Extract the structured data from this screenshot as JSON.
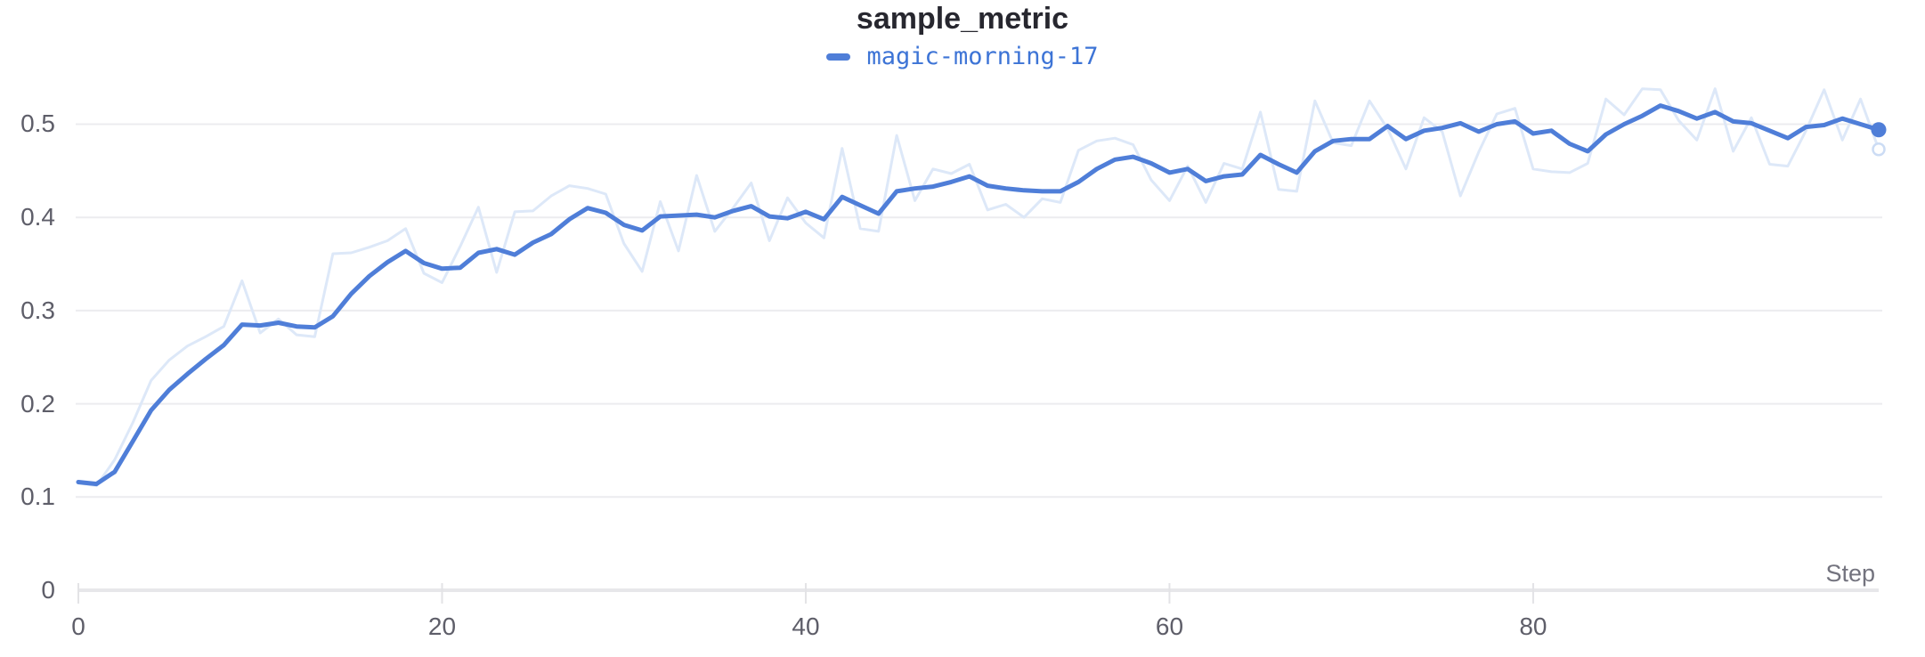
{
  "header": {
    "title": "sample_metric"
  },
  "legend": {
    "items": [
      {
        "label": "magic-morning-17",
        "color": "#4f7ed8"
      }
    ]
  },
  "colors": {
    "background": "#ffffff",
    "grid": "#ececef",
    "axis": "#e7e7ea",
    "axis_tick": "#e3e3e6",
    "tick_label": "#5e5e69",
    "axis_label": "#73737e",
    "title": "#27272f",
    "legend_text": "#3d74d6",
    "accent_line": "#4f7ed8",
    "raw_line": "#dde8f8",
    "raw_marker_stroke": "#ccdcf4"
  },
  "chart_data": {
    "type": "line",
    "title": "sample_metric",
    "xlabel": "Step",
    "ylabel": "",
    "xlim": [
      0,
      99
    ],
    "ylim": [
      0,
      0.5616
    ],
    "grid": "horizontal-only",
    "legend_position": "top-center",
    "x_ticks": [
      {
        "value": 0,
        "label": "0"
      },
      {
        "value": 20,
        "label": "20"
      },
      {
        "value": 40,
        "label": "40"
      },
      {
        "value": 60,
        "label": "60"
      },
      {
        "value": 80,
        "label": "80"
      }
    ],
    "y_ticks": [
      {
        "value": 0,
        "label": "0"
      },
      {
        "value": 0.1,
        "label": "0.1"
      },
      {
        "value": 0.2,
        "label": "0.2"
      },
      {
        "value": 0.3,
        "label": "0.3"
      },
      {
        "value": 0.4,
        "label": "0.4"
      },
      {
        "value": 0.5,
        "label": "0.5"
      }
    ],
    "x": [
      0,
      1,
      2,
      3,
      4,
      5,
      6,
      7,
      8,
      9,
      10,
      11,
      12,
      13,
      14,
      15,
      16,
      17,
      18,
      19,
      20,
      21,
      22,
      23,
      24,
      25,
      26,
      27,
      28,
      29,
      30,
      31,
      32,
      33,
      34,
      35,
      36,
      37,
      38,
      39,
      40,
      41,
      42,
      43,
      44,
      45,
      46,
      47,
      48,
      49,
      50,
      51,
      52,
      53,
      54,
      55,
      56,
      57,
      58,
      59,
      60,
      61,
      62,
      63,
      64,
      65,
      66,
      67,
      68,
      69,
      70,
      71,
      72,
      73,
      74,
      75,
      76,
      77,
      78,
      79,
      80,
      81,
      82,
      83,
      84,
      85,
      86,
      87,
      88,
      89,
      90,
      91,
      92,
      93,
      94,
      95,
      96,
      97,
      98,
      99
    ],
    "series": [
      {
        "name": "magic-morning-17",
        "role": "raw",
        "color": "#dde8f8",
        "stroke_width": 3,
        "values": [
          0.115,
          0.112,
          0.14,
          0.18,
          0.225,
          0.247,
          0.262,
          0.272,
          0.283,
          0.332,
          0.276,
          0.291,
          0.274,
          0.272,
          0.361,
          0.362,
          0.368,
          0.375,
          0.388,
          0.34,
          0.33,
          0.369,
          0.411,
          0.341,
          0.406,
          0.407,
          0.423,
          0.434,
          0.431,
          0.425,
          0.372,
          0.342,
          0.417,
          0.364,
          0.445,
          0.385,
          0.41,
          0.437,
          0.375,
          0.421,
          0.394,
          0.378,
          0.474,
          0.388,
          0.385,
          0.488,
          0.418,
          0.452,
          0.447,
          0.457,
          0.408,
          0.414,
          0.4,
          0.42,
          0.416,
          0.472,
          0.482,
          0.485,
          0.478,
          0.44,
          0.418,
          0.455,
          0.416,
          0.458,
          0.452,
          0.513,
          0.43,
          0.428,
          0.525,
          0.48,
          0.477,
          0.525,
          0.495,
          0.452,
          0.507,
          0.492,
          0.423,
          0.47,
          0.511,
          0.517,
          0.452,
          0.449,
          0.448,
          0.458,
          0.527,
          0.51,
          0.538,
          0.537,
          0.504,
          0.483,
          0.538,
          0.471,
          0.507,
          0.457,
          0.455,
          0.493,
          0.537,
          0.483,
          0.527,
          0.473
        ],
        "end_marker": {
          "shape": "open-circle",
          "x": 99,
          "value": 0.473
        }
      },
      {
        "name": "magic-morning-17",
        "role": "smoothed",
        "color": "#4f7ed8",
        "stroke_width": 5,
        "values": [
          0.116,
          0.114,
          0.127,
          0.16,
          0.193,
          0.215,
          0.232,
          0.248,
          0.263,
          0.285,
          0.284,
          0.287,
          0.283,
          0.282,
          0.294,
          0.318,
          0.337,
          0.352,
          0.364,
          0.351,
          0.345,
          0.346,
          0.362,
          0.366,
          0.36,
          0.373,
          0.382,
          0.398,
          0.41,
          0.405,
          0.392,
          0.386,
          0.401,
          0.402,
          0.403,
          0.4,
          0.407,
          0.412,
          0.401,
          0.399,
          0.406,
          0.398,
          0.422,
          0.413,
          0.404,
          0.428,
          0.431,
          0.433,
          0.438,
          0.444,
          0.434,
          0.431,
          0.429,
          0.428,
          0.428,
          0.438,
          0.452,
          0.462,
          0.465,
          0.458,
          0.448,
          0.452,
          0.439,
          0.444,
          0.446,
          0.467,
          0.457,
          0.448,
          0.471,
          0.482,
          0.484,
          0.484,
          0.498,
          0.484,
          0.493,
          0.496,
          0.501,
          0.492,
          0.5,
          0.503,
          0.49,
          0.493,
          0.479,
          0.471,
          0.489,
          0.5,
          0.509,
          0.52,
          0.514,
          0.506,
          0.513,
          0.503,
          0.501,
          0.493,
          0.485,
          0.497,
          0.499,
          0.506,
          0.5,
          0.494
        ],
        "end_marker": {
          "shape": "filled-circle",
          "x": 99,
          "value": 0.494
        }
      }
    ]
  }
}
